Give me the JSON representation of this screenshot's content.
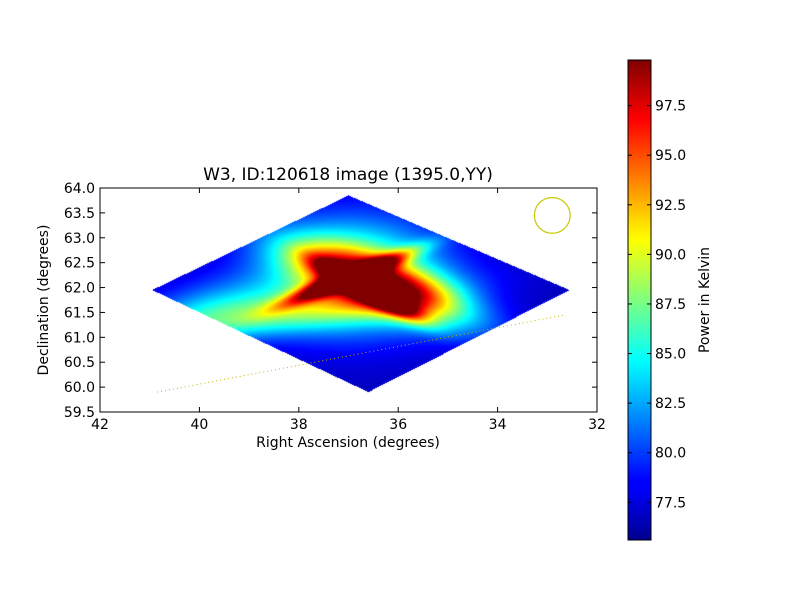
{
  "chart_data": {
    "type": "heatmap",
    "title": "W3, ID:120618 image (1395.0,YY)",
    "xlabel": "Right Ascension (degrees)",
    "ylabel": "Declination (degrees)",
    "xlim": [
      42,
      32
    ],
    "ylim": [
      59.5,
      64.0
    ],
    "x_ticks": [
      42,
      40,
      38,
      36,
      34,
      32
    ],
    "x_tick_labels": [
      "42",
      "40",
      "38",
      "36",
      "34",
      "32"
    ],
    "y_ticks": [
      59.5,
      60.0,
      60.5,
      61.0,
      61.5,
      62.0,
      62.5,
      63.0,
      63.5,
      64.0
    ],
    "y_tick_labels": [
      "59.5",
      "60.0",
      "60.5",
      "61.0",
      "61.5",
      "62.0",
      "62.5",
      "63.0",
      "63.5",
      "64.0"
    ],
    "colormap": "jet",
    "colorbar": {
      "label": "Power in Kelvin",
      "range": [
        75.6,
        99.8
      ],
      "ticks": [
        77.5,
        80.0,
        82.5,
        85.0,
        87.5,
        90.0,
        92.5,
        95.0,
        97.5
      ],
      "tick_labels": [
        "77.5",
        "80.0",
        "82.5",
        "85.0",
        "87.5",
        "90.0",
        "92.5",
        "95.0",
        "97.5"
      ]
    },
    "map_footprint": {
      "vertices": [
        {
          "ra": 37.0,
          "dec": 63.85
        },
        {
          "ra": 32.55,
          "dec": 61.95
        },
        {
          "ra": 36.6,
          "dec": 59.9
        },
        {
          "ra": 40.95,
          "dec": 61.95
        }
      ],
      "background_power": 77.0
    },
    "emission_features": [
      {
        "ra": 36.6,
        "dec": 61.95,
        "peak_power": 99.0,
        "sigma_ra": 0.7,
        "sigma_dec": 0.14,
        "angle_deg": -28
      },
      {
        "ra": 37.0,
        "dec": 62.2,
        "peak_power": 96.5,
        "sigma_ra": 0.9,
        "sigma_dec": 0.12,
        "angle_deg": 22
      },
      {
        "ra": 36.3,
        "dec": 62.05,
        "peak_power": 93.5,
        "sigma_ra": 1.3,
        "sigma_dec": 0.35,
        "angle_deg": -20
      },
      {
        "ra": 36.9,
        "dec": 62.25,
        "peak_power": 88.0,
        "sigma_ra": 1.3,
        "sigma_dec": 0.8,
        "angle_deg": 0
      },
      {
        "ra": 38.5,
        "dec": 61.45,
        "peak_power": 84.0,
        "sigma_ra": 2.2,
        "sigma_dec": 0.3,
        "angle_deg": 8
      },
      {
        "ra": 39.8,
        "dec": 61.6,
        "peak_power": 81.5,
        "sigma_ra": 1.0,
        "sigma_dec": 0.4,
        "angle_deg": 10
      }
    ],
    "overlays": {
      "beam_circle": {
        "ra": 32.9,
        "dec": 63.45,
        "radius_ra": 0.36,
        "color": "#c8c800"
      },
      "scan_track": {
        "from": {
          "ra": 40.85,
          "dec": 59.9
        },
        "to": {
          "ra": 32.65,
          "dec": 61.45
        },
        "color": "#c8b400"
      }
    },
    "grid": false
  }
}
